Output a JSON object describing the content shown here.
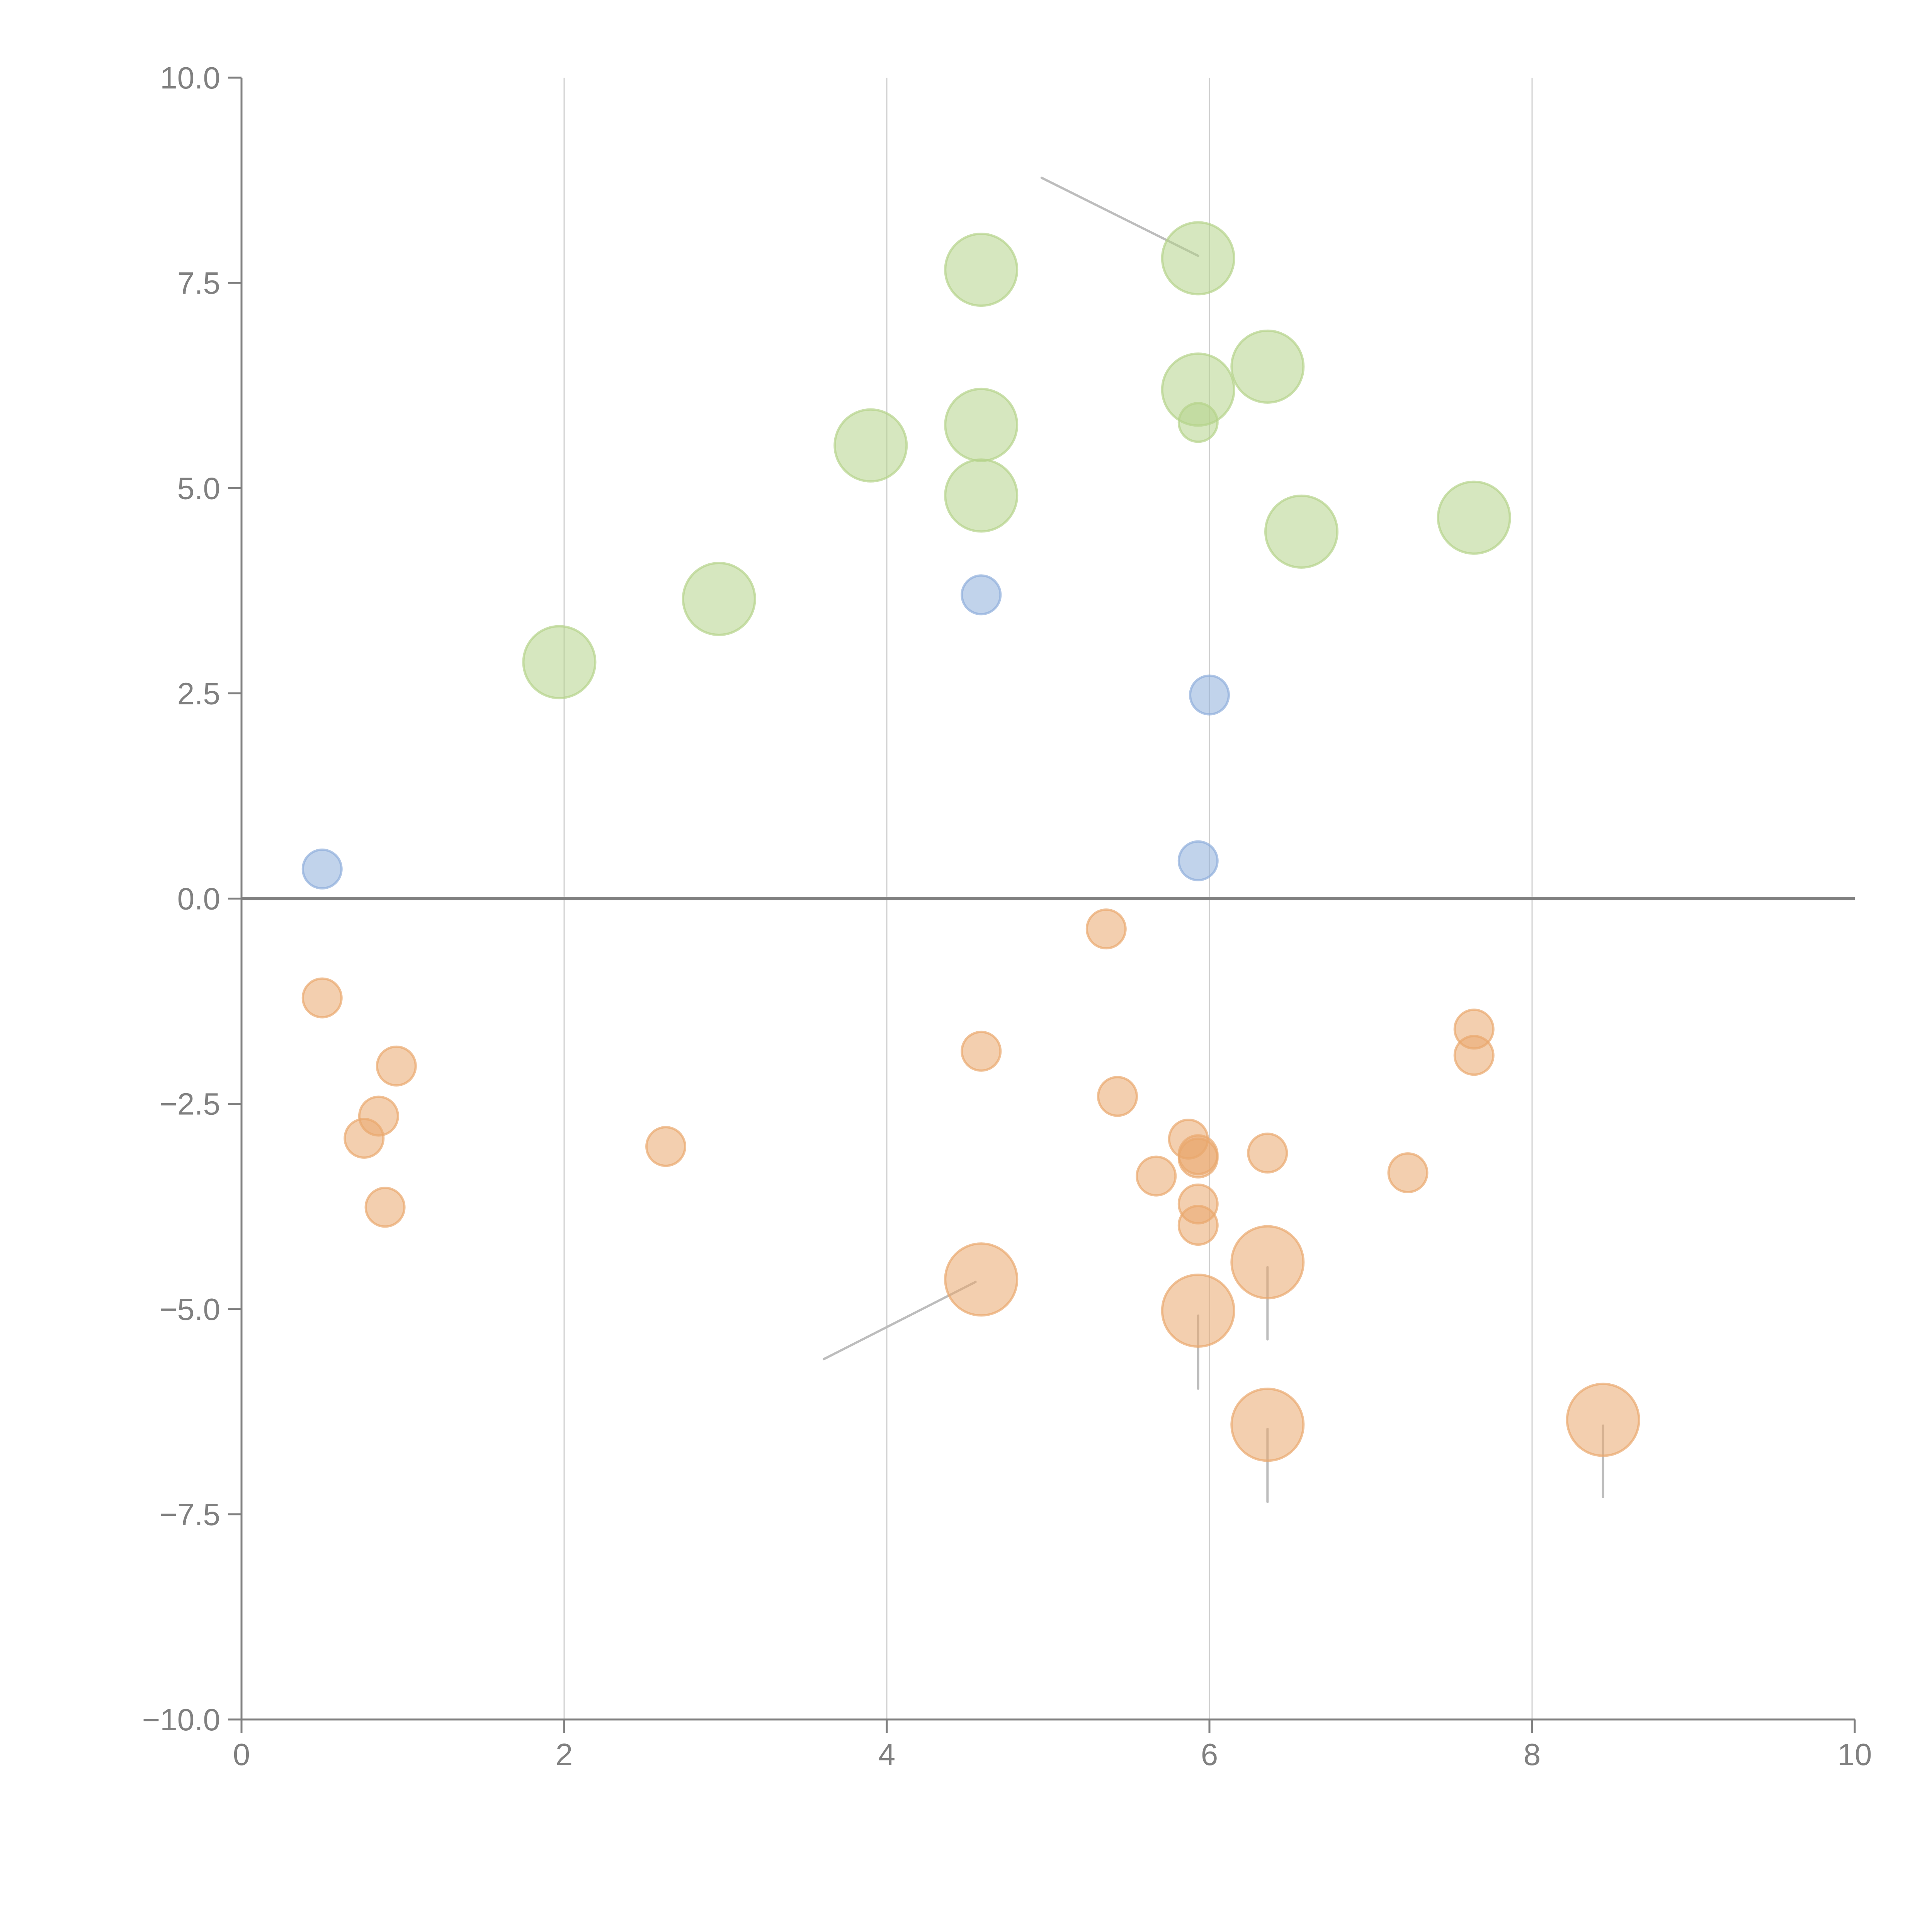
{
  "chart_data": {
    "type": "scatter",
    "title": "",
    "xlabel": "",
    "ylabel": "",
    "xlim": [
      0,
      10
    ],
    "ylim": [
      -10,
      10
    ],
    "x_ticks": [
      0,
      2,
      4,
      6,
      8,
      10
    ],
    "x_tick_labels": [
      "0",
      "2",
      "4",
      "6",
      "8",
      "10"
    ],
    "y_ticks": [
      10,
      7.5,
      5,
      2.5,
      0,
      -2.5,
      -5,
      -7.5,
      -10
    ],
    "y_tick_labels": [
      "10.0",
      "7.5",
      "5.0",
      "2.5",
      "0.0",
      "−2.5",
      "−5.0",
      "−7.5",
      "−10.0"
    ],
    "grid": "vertical",
    "zero_line": true,
    "legend": "none",
    "series": [
      {
        "name": "green",
        "color": "#b5d38a",
        "points": [
          {
            "x": 1.97,
            "y": 2.88,
            "size": "large"
          },
          {
            "x": 2.96,
            "y": 3.65,
            "size": "large"
          },
          {
            "x": 3.9,
            "y": 5.52,
            "size": "large"
          },
          {
            "x": 4.585,
            "y": 7.66,
            "size": "large"
          },
          {
            "x": 4.585,
            "y": 5.77,
            "size": "large"
          },
          {
            "x": 4.585,
            "y": 4.91,
            "size": "large"
          },
          {
            "x": 5.93,
            "y": 7.8,
            "size": "large"
          },
          {
            "x": 5.93,
            "y": 6.2,
            "size": "large"
          },
          {
            "x": 5.93,
            "y": 5.8,
            "size": "small"
          },
          {
            "x": 6.36,
            "y": 6.48,
            "size": "large"
          },
          {
            "x": 6.57,
            "y": 4.47,
            "size": "large"
          },
          {
            "x": 7.64,
            "y": 4.64,
            "size": "large"
          }
        ]
      },
      {
        "name": "blue",
        "color": "#8eaedb",
        "points": [
          {
            "x": 0.5,
            "y": 0.36,
            "size": "small"
          },
          {
            "x": 4.585,
            "y": 3.7,
            "size": "small"
          },
          {
            "x": 6.0,
            "y": 2.48,
            "size": "small"
          },
          {
            "x": 5.93,
            "y": 0.46,
            "size": "small"
          }
        ]
      },
      {
        "name": "orange",
        "color": "#e9a86e",
        "points": [
          {
            "x": 0.5,
            "y": -1.21,
            "size": "small"
          },
          {
            "x": 0.96,
            "y": -2.04,
            "size": "small"
          },
          {
            "x": 0.85,
            "y": -2.65,
            "size": "small"
          },
          {
            "x": 0.76,
            "y": -2.92,
            "size": "small"
          },
          {
            "x": 0.89,
            "y": -3.76,
            "size": "small"
          },
          {
            "x": 2.63,
            "y": -3.02,
            "size": "small"
          },
          {
            "x": 4.585,
            "y": -1.86,
            "size": "small"
          },
          {
            "x": 5.36,
            "y": -0.37,
            "size": "small"
          },
          {
            "x": 5.43,
            "y": -2.41,
            "size": "small"
          },
          {
            "x": 5.87,
            "y": -2.93,
            "size": "small"
          },
          {
            "x": 5.93,
            "y": -3.12,
            "size": "small"
          },
          {
            "x": 5.93,
            "y": -3.16,
            "size": "small"
          },
          {
            "x": 5.67,
            "y": -3.38,
            "size": "small"
          },
          {
            "x": 5.93,
            "y": -3.72,
            "size": "small"
          },
          {
            "x": 5.93,
            "y": -3.98,
            "size": "small"
          },
          {
            "x": 6.36,
            "y": -3.1,
            "size": "small"
          },
          {
            "x": 7.23,
            "y": -3.34,
            "size": "small"
          },
          {
            "x": 7.64,
            "y": -1.59,
            "size": "small"
          },
          {
            "x": 7.64,
            "y": -1.91,
            "size": "small"
          },
          {
            "x": 4.585,
            "y": -4.64,
            "size": "large"
          },
          {
            "x": 5.93,
            "y": -5.02,
            "size": "large"
          },
          {
            "x": 6.36,
            "y": -4.43,
            "size": "large"
          },
          {
            "x": 6.36,
            "y": -6.41,
            "size": "large"
          },
          {
            "x": 8.44,
            "y": -6.35,
            "size": "large"
          }
        ]
      }
    ],
    "annotation_leaders": [
      {
        "from": [
          5.93,
          7.83
        ],
        "to": [
          4.96,
          8.78
        ]
      },
      {
        "from": [
          4.55,
          -4.67
        ],
        "to": [
          3.61,
          -5.61
        ]
      },
      {
        "from": [
          5.93,
          -5.08
        ],
        "to": [
          5.93,
          -5.97
        ]
      },
      {
        "from": [
          6.36,
          -4.49
        ],
        "to": [
          6.36,
          -5.37
        ]
      },
      {
        "from": [
          6.36,
          -6.46
        ],
        "to": [
          6.36,
          -7.35
        ]
      },
      {
        "from": [
          8.44,
          -6.42
        ],
        "to": [
          8.44,
          -7.29
        ]
      }
    ]
  }
}
